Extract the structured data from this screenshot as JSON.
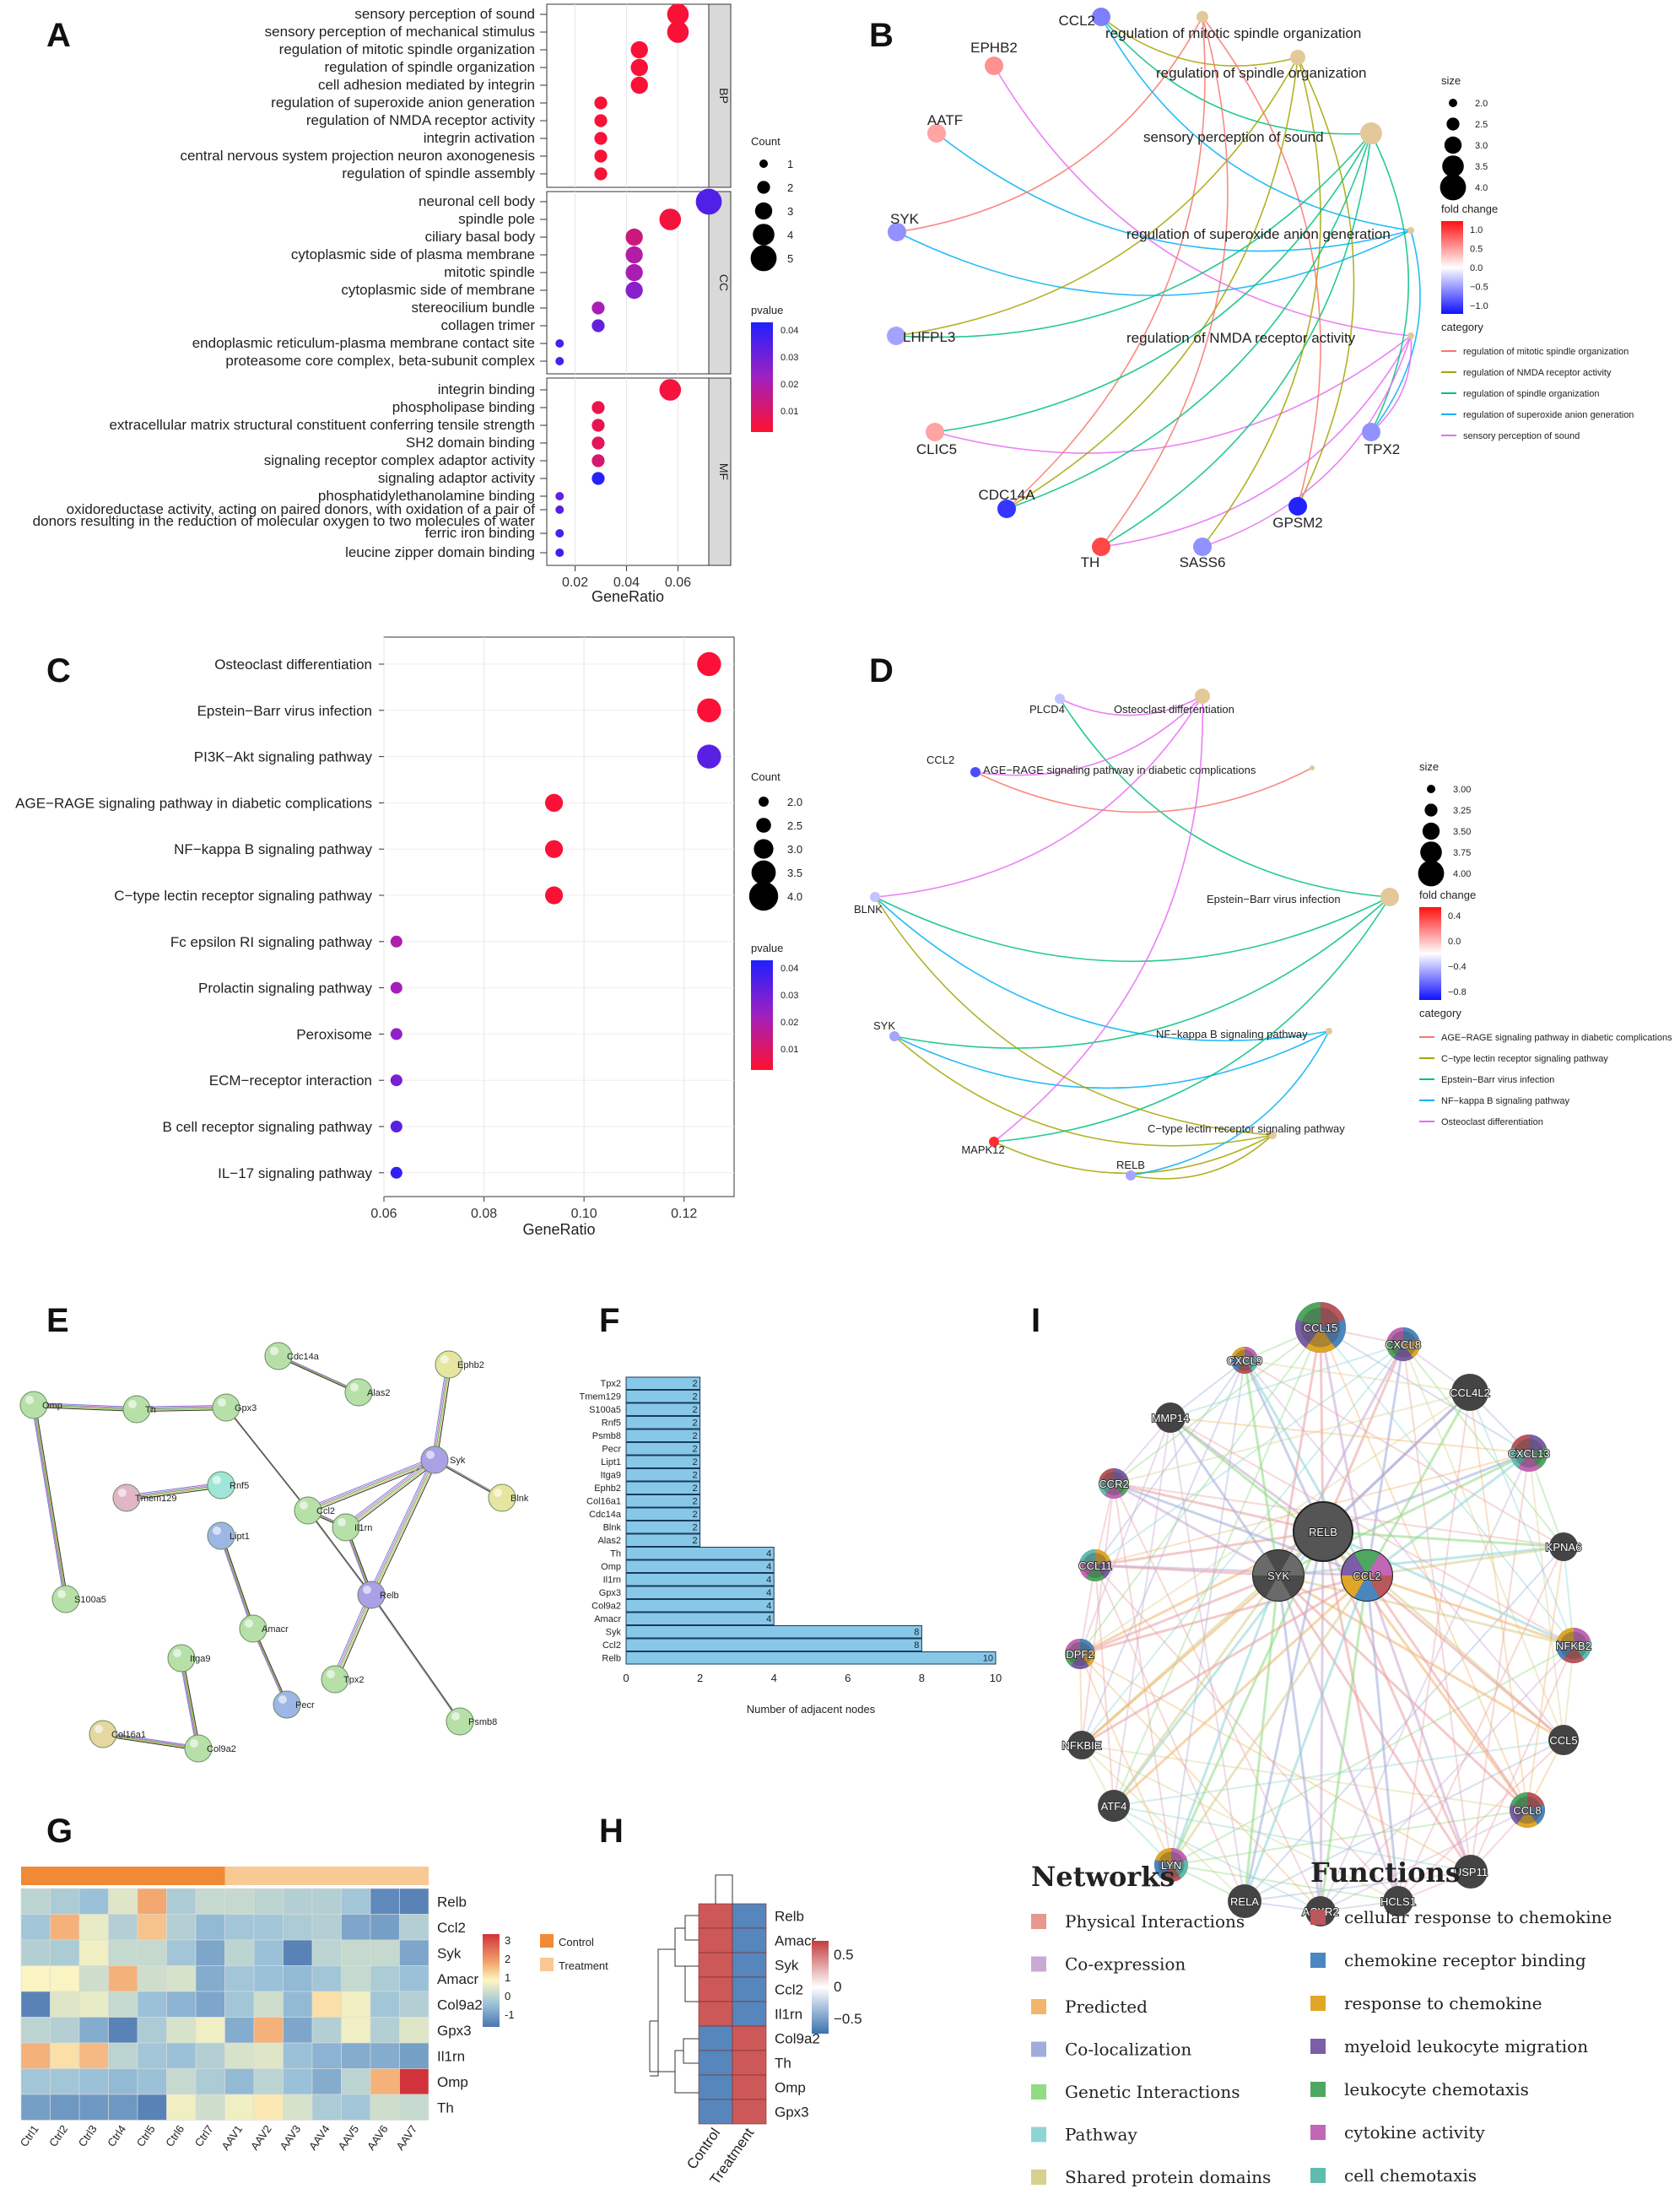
{
  "panels": {
    "A": "A",
    "B": "B",
    "C": "C",
    "D": "D",
    "E": "E",
    "F": "F",
    "I": "I",
    "G": "G",
    "H": "H"
  },
  "chart_data": [
    {
      "panel": "A",
      "type": "scatter",
      "xlabel": "GeneRatio",
      "xticks": [
        0.02,
        0.04,
        0.06
      ],
      "xlim": [
        0.009,
        0.072
      ],
      "facets": [
        {
          "name": "BP",
          "terms": [
            {
              "term": "sensory perception of sound",
              "x": 0.06,
              "count": 4,
              "p": 0.002
            },
            {
              "term": "sensory perception of mechanical stimulus",
              "x": 0.06,
              "count": 4,
              "p": 0.002
            },
            {
              "term": "regulation of mitotic spindle organization",
              "x": 0.045,
              "count": 3,
              "p": 0.002
            },
            {
              "term": "regulation of spindle organization",
              "x": 0.045,
              "count": 3,
              "p": 0.002
            },
            {
              "term": "cell adhesion mediated by integrin",
              "x": 0.045,
              "count": 3,
              "p": 0.002
            },
            {
              "term": "regulation of superoxide anion generation",
              "x": 0.03,
              "count": 2,
              "p": 0.002
            },
            {
              "term": "regulation of NMDA receptor activity",
              "x": 0.03,
              "count": 2,
              "p": 0.002
            },
            {
              "term": "integrin activation",
              "x": 0.03,
              "count": 2,
              "p": 0.002
            },
            {
              "term": "central nervous system projection neuron axonogenesis",
              "x": 0.03,
              "count": 2,
              "p": 0.002
            },
            {
              "term": "regulation of spindle assembly",
              "x": 0.03,
              "count": 2,
              "p": 0.002
            }
          ]
        },
        {
          "name": "CC",
          "terms": [
            {
              "term": "neuronal cell body",
              "x": 0.072,
              "count": 5,
              "p": 0.035
            },
            {
              "term": "spindle pole",
              "x": 0.057,
              "count": 4,
              "p": 0.003
            },
            {
              "term": "ciliary basal body",
              "x": 0.043,
              "count": 3,
              "p": 0.012
            },
            {
              "term": "cytoplasmic side of plasma membrane",
              "x": 0.043,
              "count": 3,
              "p": 0.018
            },
            {
              "term": "mitotic spindle",
              "x": 0.043,
              "count": 3,
              "p": 0.02
            },
            {
              "term": "cytoplasmic side of membrane",
              "x": 0.043,
              "count": 3,
              "p": 0.026
            },
            {
              "term": "stereocilium bundle",
              "x": 0.029,
              "count": 2,
              "p": 0.02
            },
            {
              "term": "collagen trimer",
              "x": 0.029,
              "count": 2,
              "p": 0.032
            },
            {
              "term": "endoplasmic reticulum-plasma membrane contact site",
              "x": 0.014,
              "count": 1,
              "p": 0.036
            },
            {
              "term": "proteasome core complex, beta-subunit complex",
              "x": 0.014,
              "count": 1,
              "p": 0.036
            }
          ]
        },
        {
          "name": "MF",
          "terms": [
            {
              "term": "integrin binding",
              "x": 0.057,
              "count": 4,
              "p": 0.003
            },
            {
              "term": "phospholipase binding",
              "x": 0.029,
              "count": 2,
              "p": 0.005
            },
            {
              "term": "extracellular matrix structural constituent conferring tensile strength",
              "x": 0.029,
              "count": 2,
              "p": 0.006
            },
            {
              "term": "SH2 domain binding",
              "x": 0.029,
              "count": 2,
              "p": 0.007
            },
            {
              "term": "signaling receptor complex adaptor activity",
              "x": 0.029,
              "count": 2,
              "p": 0.01
            },
            {
              "term": "signaling adaptor activity",
              "x": 0.029,
              "count": 2,
              "p": 0.042
            },
            {
              "term": "phosphatidylethanolamine binding",
              "x": 0.014,
              "count": 1,
              "p": 0.032
            },
            {
              "term": "oxidoreductase activity, acting on paired donors, with oxidation of a pair of",
              "x": 0.014,
              "count": 1,
              "p": 0.034
            },
            {
              "term": "donors resulting in the reduction of molecular oxygen to two molecules of water",
              "x": null,
              "count": null,
              "p": null
            },
            {
              "term": "ferric iron binding",
              "x": 0.014,
              "count": 1,
              "p": 0.036
            },
            {
              "term": "leucine zipper domain binding",
              "x": 0.014,
              "count": 1,
              "p": 0.038
            }
          ]
        }
      ],
      "size_legend": {
        "title": "Count",
        "values": [
          1,
          2,
          3,
          4,
          5
        ]
      },
      "color_legend": {
        "title": "pvalue",
        "ticks": [
          0.04,
          0.03,
          0.02,
          0.01
        ],
        "range": [
          0.001,
          0.043
        ]
      }
    },
    {
      "panel": "B",
      "type": "network",
      "genes": [
        {
          "name": "CCL2",
          "fc": -0.7
        },
        {
          "name": "EPHB2",
          "fc": 0.6
        },
        {
          "name": "AATF",
          "fc": 0.5
        },
        {
          "name": "SYK",
          "fc": -0.6
        },
        {
          "name": "LHFPL3",
          "fc": -0.5
        },
        {
          "name": "CLIC5",
          "fc": 0.5
        },
        {
          "name": "CDC14A",
          "fc": -1.1
        },
        {
          "name": "TH",
          "fc": 1.0
        },
        {
          "name": "SASS6",
          "fc": -0.6
        },
        {
          "name": "GPSM2",
          "fc": -1.2
        },
        {
          "name": "TPX2",
          "fc": -0.6
        }
      ],
      "terms": [
        "regulation of mitotic spindle organization",
        "regulation of spindle organization",
        "sensory perception of sound",
        "regulation of superoxide anion generation",
        "regulation of NMDA receptor activity"
      ],
      "size_legend": {
        "title": "size",
        "values": [
          "2.0",
          "2.5",
          "3.0",
          "3.5",
          "4.0"
        ]
      },
      "fc_legend": {
        "title": "fold change",
        "ticks": [
          "1.0",
          "0.5",
          "0.0",
          "−0.5",
          "−1.0"
        ]
      },
      "category_legend": {
        "title": "category",
        "items": [
          {
            "name": "regulation of mitotic spindle organization",
            "color": "#f8766d"
          },
          {
            "name": "regulation of NMDA receptor activity",
            "color": "#a3a500"
          },
          {
            "name": "regulation of spindle organization",
            "color": "#00bf7d"
          },
          {
            "name": "regulation of superoxide anion generation",
            "color": "#00b0f6"
          },
          {
            "name": "sensory perception of sound",
            "color": "#e76bf3"
          }
        ]
      }
    },
    {
      "panel": "C",
      "type": "scatter",
      "xlabel": "GeneRatio",
      "xticks": [
        0.06,
        0.08,
        0.1,
        0.12
      ],
      "xlim": [
        0.06,
        0.13
      ],
      "terms": [
        {
          "term": "Osteoclast differentiation",
          "x": 0.125,
          "count": 4,
          "p": 0.002
        },
        {
          "term": "Epstein−Barr virus infection",
          "x": 0.125,
          "count": 4,
          "p": 0.002
        },
        {
          "term": "PI3K−Akt signaling pathway",
          "x": 0.125,
          "count": 4,
          "p": 0.035
        },
        {
          "term": "AGE−RAGE signaling pathway in diabetic complications",
          "x": 0.094,
          "count": 3,
          "p": 0.002
        },
        {
          "term": "NF−kappa B signaling pathway",
          "x": 0.094,
          "count": 3,
          "p": 0.002
        },
        {
          "term": "C−type lectin receptor signaling pathway",
          "x": 0.094,
          "count": 3,
          "p": 0.002
        },
        {
          "term": "Fc epsilon RI signaling pathway",
          "x": 0.0625,
          "count": 2,
          "p": 0.02
        },
        {
          "term": "Prolactin signaling pathway",
          "x": 0.0625,
          "count": 2,
          "p": 0.022
        },
        {
          "term": "Peroxisome",
          "x": 0.0625,
          "count": 2,
          "p": 0.026
        },
        {
          "term": "ECM−receptor interaction",
          "x": 0.0625,
          "count": 2,
          "p": 0.03
        },
        {
          "term": "B cell receptor signaling pathway",
          "x": 0.0625,
          "count": 2,
          "p": 0.035
        },
        {
          "term": "IL−17 signaling pathway",
          "x": 0.0625,
          "count": 2,
          "p": 0.042
        }
      ],
      "size_legend": {
        "title": "Count",
        "values": [
          "2.0",
          "2.5",
          "3.0",
          "3.5",
          "4.0"
        ]
      },
      "color_legend": {
        "title": "pvalue",
        "ticks": [
          0.04,
          0.03,
          0.02,
          0.01
        ],
        "range": [
          0.001,
          0.045
        ]
      }
    },
    {
      "panel": "D",
      "type": "network",
      "genes": [
        {
          "name": "PLCD4",
          "fc": -0.4
        },
        {
          "name": "CCL2",
          "fc": -0.8
        },
        {
          "name": "BLNK",
          "fc": -0.4
        },
        {
          "name": "SYK",
          "fc": -0.5
        },
        {
          "name": "MAPK12",
          "fc": 0.5
        },
        {
          "name": "RELB",
          "fc": -0.5
        }
      ],
      "terms": [
        "Osteoclast differentiation",
        "AGE−RAGE signaling pathway in diabetic complications",
        "Epstein−Barr virus infection",
        "NF−kappa B signaling pathway",
        "C−type lectin receptor signaling pathway"
      ],
      "size_legend": {
        "title": "size",
        "values": [
          "3.00",
          "3.25",
          "3.50",
          "3.75",
          "4.00"
        ]
      },
      "fc_legend": {
        "title": "fold change",
        "ticks": [
          "0.4",
          "0.0",
          "−0.4",
          "−0.8"
        ]
      },
      "category_legend": {
        "title": "category",
        "items": [
          {
            "name": "AGE−RAGE signaling pathway in diabetic complications",
            "color": "#f8766d"
          },
          {
            "name": "C−type lectin receptor signaling pathway",
            "color": "#a3a500"
          },
          {
            "name": "Epstein−Barr virus infection",
            "color": "#00bf7d"
          },
          {
            "name": "NF−kappa B signaling pathway",
            "color": "#00b0f6"
          },
          {
            "name": "Osteoclast differentiation",
            "color": "#e76bf3"
          }
        ]
      }
    },
    {
      "panel": "E",
      "type": "network",
      "nodes": [
        "Omp",
        "Th",
        "Gpx3",
        "Cdc14a",
        "Alas2",
        "Ephb2",
        "Syk",
        "Blnk",
        "Tmem129",
        "Rnf5",
        "Lipt1",
        "Ccl2",
        "Il1rn",
        "Relb",
        "Amacr",
        "Tpx2",
        "Itga9",
        "Pecr",
        "Psmb8",
        "Col16a1",
        "Col9a2",
        "S100a5"
      ]
    },
    {
      "panel": "F",
      "type": "bar",
      "orientation": "horizontal",
      "categories": [
        "Tpx2",
        "Tmem129",
        "S100a5",
        "Rnf5",
        "Psmb8",
        "Pecr",
        "Lipt1",
        "Itga9",
        "Ephb2",
        "Col16a1",
        "Cdc14a",
        "Blnk",
        "Alas2",
        "Th",
        "Omp",
        "Il1rn",
        "Gpx3",
        "Col9a2",
        "Amacr",
        "Syk",
        "Ccl2",
        "Relb"
      ],
      "values": [
        2,
        2,
        2,
        2,
        2,
        2,
        2,
        2,
        2,
        2,
        2,
        2,
        2,
        4,
        4,
        4,
        4,
        4,
        4,
        8,
        8,
        10
      ],
      "xlabel": "Number of adjacent nodes",
      "xticks": [
        0,
        2,
        4,
        6,
        8,
        10
      ],
      "xlim": [
        0,
        10
      ]
    },
    {
      "panel": "I",
      "type": "network",
      "center_nodes": [
        "RELB",
        "SYK",
        "CCL2"
      ],
      "ring_nodes": [
        "CCL15",
        "CXCL8",
        "CCL4L2",
        "CXCL13",
        "KPNA6",
        "NFKB2",
        "CCL5",
        "CCL8",
        "USP11",
        "HCLS1",
        "ACKR2",
        "RELA",
        "LYN",
        "ATF4",
        "NFKBIE",
        "DPF2",
        "CCL11",
        "CCR2",
        "MMP14",
        "CXCL9"
      ]
    },
    {
      "panel": "G",
      "type": "heatmap",
      "rows": [
        "Relb",
        "Ccl2",
        "Syk",
        "Amacr",
        "Col9a2",
        "Gpx3",
        "Il1rn",
        "Omp",
        "Th"
      ],
      "columns": [
        "Ctrl1",
        "Ctrl2",
        "Ctrl3",
        "Ctrl4",
        "Ctrl5",
        "Ctrl6",
        "Ctrl7",
        "AAV1",
        "AAV2",
        "AAV3",
        "AAV4",
        "AAV5",
        "AAV6",
        "AAV7"
      ],
      "values": [
        [
          0.0,
          -0.2,
          -0.4,
          0.4,
          1.6,
          -0.2,
          0.1,
          0.1,
          0.0,
          -0.1,
          -0.1,
          -0.3,
          -1.2,
          -1.3
        ],
        [
          -0.3,
          1.5,
          0.5,
          -0.1,
          1.3,
          -0.1,
          -0.5,
          -0.3,
          -0.3,
          -0.2,
          -0.1,
          -0.8,
          -0.9,
          -0.1
        ],
        [
          -0.1,
          -0.2,
          0.6,
          0.1,
          0.1,
          -0.3,
          -0.8,
          0.0,
          -0.4,
          -1.3,
          0.0,
          0.1,
          0.1,
          -0.8
        ],
        [
          0.7,
          0.7,
          0.2,
          1.5,
          0.2,
          0.3,
          -0.7,
          -0.3,
          -0.4,
          -0.5,
          -0.3,
          0.1,
          -0.2,
          -0.4
        ],
        [
          -1.3,
          0.4,
          0.5,
          0.1,
          -0.4,
          -0.6,
          -0.8,
          -0.3,
          0.2,
          -0.5,
          1.0,
          0.6,
          -0.3,
          -0.1
        ],
        [
          0.0,
          -0.1,
          -0.7,
          -1.3,
          -0.2,
          0.3,
          0.6,
          -0.7,
          1.5,
          -0.8,
          -0.1,
          0.6,
          -0.1,
          0.4
        ],
        [
          1.5,
          1.0,
          1.4,
          0.0,
          -0.3,
          -0.4,
          -0.1,
          0.3,
          0.4,
          -0.4,
          -0.6,
          -0.7,
          -0.7,
          -0.9
        ],
        [
          -0.3,
          -0.3,
          -0.4,
          -0.5,
          -0.4,
          0.1,
          -0.2,
          -0.5,
          0.0,
          -0.4,
          -0.7,
          0.0,
          1.5,
          3.0
        ],
        [
          -0.9,
          -1.0,
          -1.0,
          -1.0,
          -1.3,
          0.6,
          0.2,
          0.6,
          0.9,
          0.3,
          -0.2,
          -0.3,
          0.2,
          0.1
        ]
      ],
      "annotation": [
        "Control",
        "Control",
        "Control",
        "Control",
        "Control",
        "Control",
        "Control",
        "Treatment",
        "Treatment",
        "Treatment",
        "Treatment",
        "Treatment",
        "Treatment",
        "Treatment"
      ],
      "annotation_legend": [
        {
          "name": "Control",
          "color": "#f08a36"
        },
        {
          "name": "Treatment",
          "color": "#f8c992"
        }
      ],
      "color_ticks": [
        3,
        2,
        1,
        0,
        -1
      ],
      "color_range": [
        -1.5,
        3
      ]
    },
    {
      "panel": "H",
      "type": "heatmap",
      "rows": [
        "Relb",
        "Amacr",
        "Syk",
        "Ccl2",
        "Il1rn",
        "Col9a2",
        "Th",
        "Omp",
        "Gpx3"
      ],
      "columns": [
        "Control",
        "Treatment"
      ],
      "values": [
        [
          0.6,
          -0.6
        ],
        [
          0.6,
          -0.6
        ],
        [
          0.6,
          -0.6
        ],
        [
          0.6,
          -0.6
        ],
        [
          0.6,
          -0.6
        ],
        [
          -0.6,
          0.6
        ],
        [
          -0.6,
          0.6
        ],
        [
          -0.6,
          0.6
        ],
        [
          -0.6,
          0.6
        ]
      ],
      "color_ticks": [
        "0.5",
        "0",
        "−0.5"
      ],
      "color_range": [
        -0.7,
        0.7
      ]
    }
  ],
  "legend_I": {
    "networks_title": "Networks",
    "networks": [
      {
        "name": "Physical Interactions",
        "color": "#e8968f"
      },
      {
        "name": "Co-expression",
        "color": "#c9a9d3"
      },
      {
        "name": "Predicted",
        "color": "#f2b56c"
      },
      {
        "name": "Co-localization",
        "color": "#a0addb"
      },
      {
        "name": "Genetic Interactions",
        "color": "#8fdc82"
      },
      {
        "name": "Pathway",
        "color": "#8fd5d6"
      },
      {
        "name": "Shared protein domains",
        "color": "#d8d08f"
      }
    ],
    "functions_title": "Functions",
    "functions": [
      {
        "name": "cellular response to chemokine",
        "color": "#b9575b"
      },
      {
        "name": "chemokine receptor binding",
        "color": "#4a86c0"
      },
      {
        "name": "response to chemokine",
        "color": "#e0a628"
      },
      {
        "name": "myeloid leukocyte migration",
        "color": "#7b5ea7"
      },
      {
        "name": "leukocyte chemotaxis",
        "color": "#4ea760"
      },
      {
        "name": "cytokine activity",
        "color": "#c266b6"
      },
      {
        "name": "cell chemotaxis",
        "color": "#5fbcb0"
      }
    ]
  }
}
